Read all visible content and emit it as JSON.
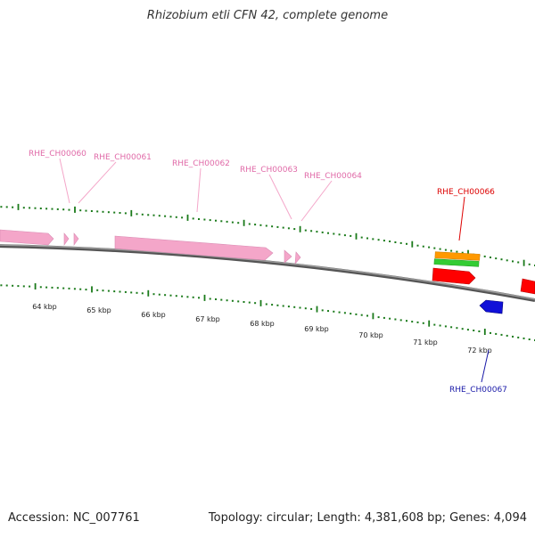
{
  "title": "Rhizobium etli CFN 42, complete genome",
  "accession": "Accession: NC_007761",
  "summary": "Topology: circular; Length: 4,381,608 bp; Genes: 4,094",
  "colors": {
    "pink_gene": "#f4a6c9",
    "red_gene": "#ff0000",
    "blue_gene": "#1010d8",
    "orange_feature": "#ff9900",
    "green_feature": "#33cc33",
    "tick_green": "#1a7a1a",
    "backbone": "#777777"
  },
  "ticks": [
    "64 kbp",
    "65 kbp",
    "66 kbp",
    "67 kbp",
    "68 kbp",
    "69 kbp",
    "70 kbp",
    "71 kbp",
    "72 kbp"
  ],
  "gene_labels": [
    {
      "text": "RHE_CH00060",
      "color": "#e06aa8"
    },
    {
      "text": "RHE_CH00061",
      "color": "#e06aa8"
    },
    {
      "text": "RHE_CH00062",
      "color": "#e06aa8"
    },
    {
      "text": "RHE_CH00063",
      "color": "#e06aa8"
    },
    {
      "text": "RHE_CH00064",
      "color": "#e06aa8"
    },
    {
      "text": "RHE_CH00066",
      "color": "#dd0000"
    },
    {
      "text": "RHE_CH00067",
      "color": "#1a1aa8"
    }
  ]
}
